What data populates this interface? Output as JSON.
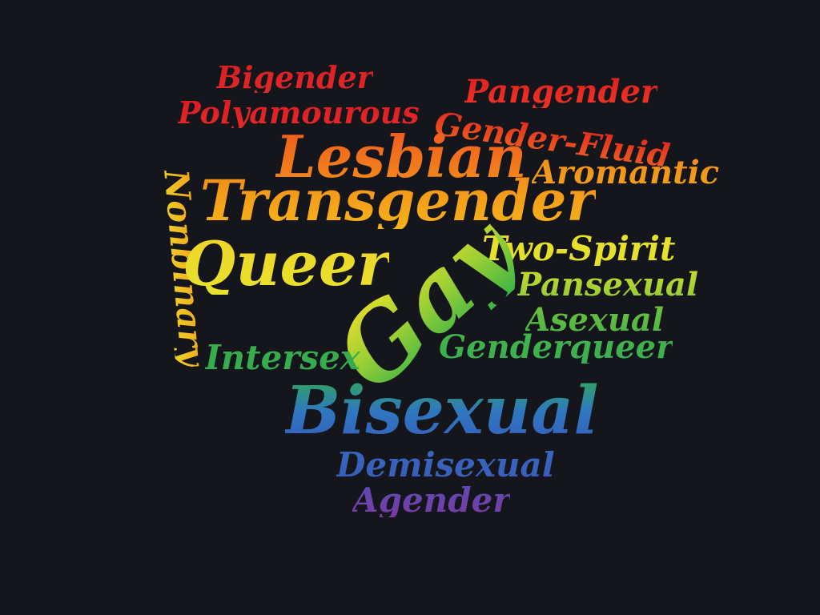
{
  "words": [
    {
      "text": "Bigender",
      "colors": [
        "#d81e22",
        "#e0282a"
      ]
    },
    {
      "text": "Polyamourous",
      "colors": [
        "#d81a22",
        "#e52a2a"
      ]
    },
    {
      "text": "Pangender",
      "colors": [
        "#e0201f",
        "#ee3526"
      ]
    },
    {
      "text": "Gender-Fluid",
      "colors": [
        "#e02a1f",
        "#f06020"
      ]
    },
    {
      "text": "Lesbian",
      "colors": [
        "#f05a1e",
        "#f28a1c"
      ]
    },
    {
      "text": "Aromantic",
      "colors": [
        "#f08c1c",
        "#f0a21a"
      ]
    },
    {
      "text": "Transgender",
      "colors": [
        "#f28c1a",
        "#f5b41a"
      ]
    },
    {
      "text": "Nonbinary",
      "colors": [
        "#f0a01a",
        "#efd32a"
      ]
    },
    {
      "text": "Queer",
      "colors": [
        "#efd52a",
        "#e6e22c"
      ]
    },
    {
      "text": "Two-Spirit",
      "colors": [
        "#e8df2a",
        "#e2e22e"
      ]
    },
    {
      "text": "Pansexual",
      "colors": [
        "#c8da2e",
        "#8fcb36"
      ]
    },
    {
      "text": "Gay",
      "colors": [
        "#e8de2a",
        "#9ccf34",
        "#3db546"
      ]
    },
    {
      "text": "Asexual",
      "colors": [
        "#6fc03a",
        "#48b648"
      ]
    },
    {
      "text": "Genderqueer",
      "colors": [
        "#43b54a",
        "#3aae50"
      ]
    },
    {
      "text": "Intersex",
      "colors": [
        "#3aae4a",
        "#34aa52"
      ]
    },
    {
      "text": "Bisexual",
      "colors": [
        "#2fa85a",
        "#2f78c0",
        "#3560bc"
      ]
    },
    {
      "text": "Demisexual",
      "colors": [
        "#3568c0",
        "#3b5cb8"
      ]
    },
    {
      "text": "Agender",
      "colors": [
        "#5a4cb0",
        "#7a3aa8"
      ]
    }
  ]
}
